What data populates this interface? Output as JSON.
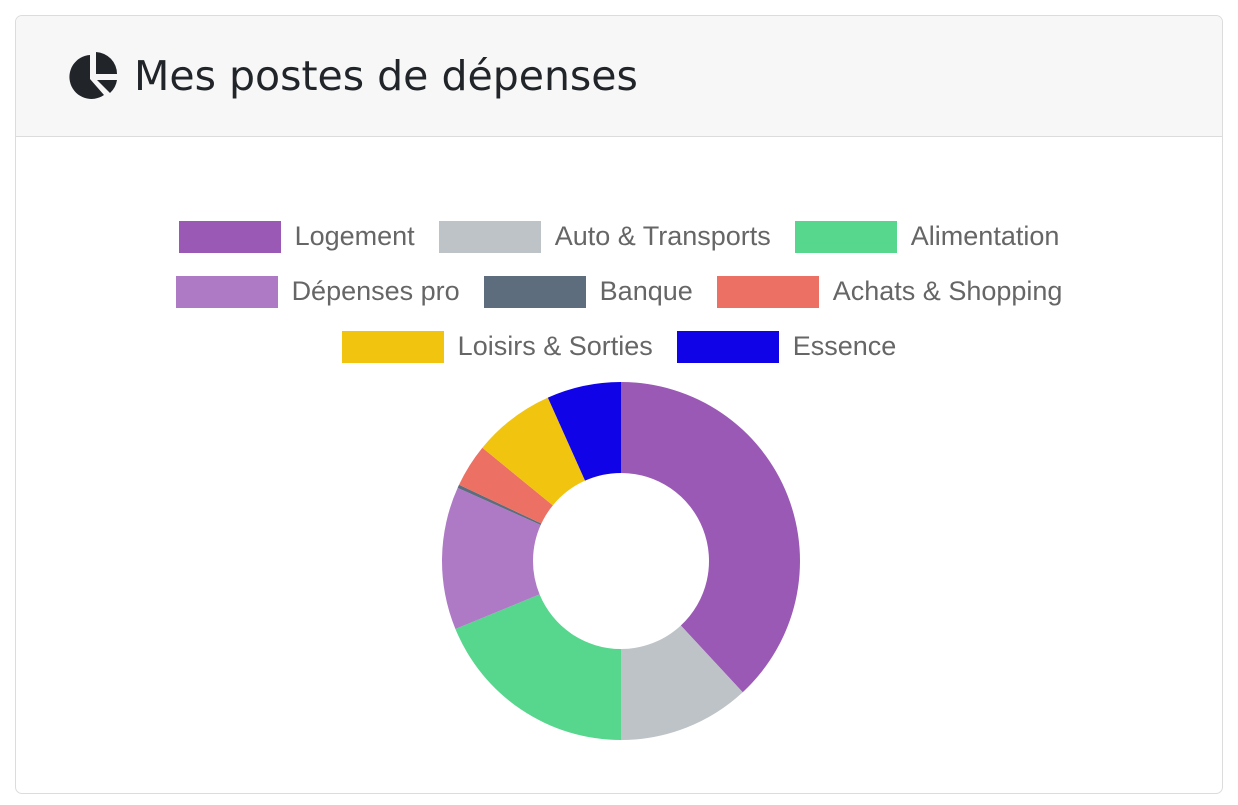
{
  "header": {
    "title": "Mes postes de dépenses",
    "icon": "chart-pie-icon"
  },
  "chart_data": {
    "type": "pie",
    "variant": "doughnut",
    "legend_position": "top",
    "categories": [
      "Logement",
      "Auto & Transports",
      "Alimentation",
      "Dépenses pro",
      "Banque",
      "Achats & Shopping",
      "Loisirs & Sorties",
      "Essence"
    ],
    "values": [
      38.1,
      11.9,
      18.8,
      12.9,
      0.3,
      3.9,
      7.4,
      6.7
    ],
    "colors": [
      "#9b59b6",
      "#bdc3c7",
      "#57d68d",
      "#af7ac5",
      "#5d6d7e",
      "#ec7063",
      "#f1c40f",
      "#1003e8"
    ]
  }
}
